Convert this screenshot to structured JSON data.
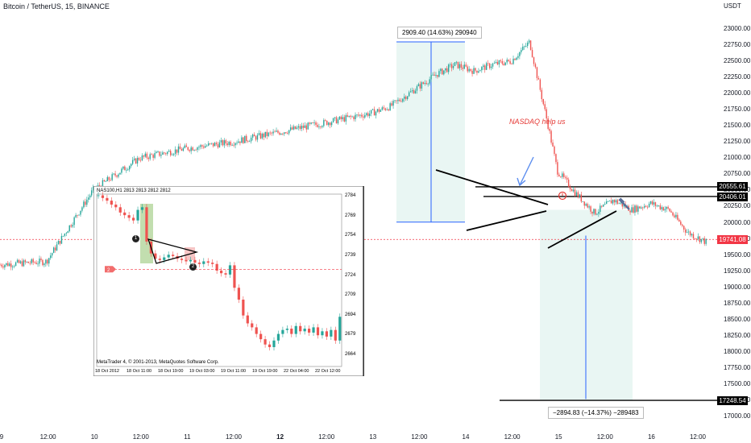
{
  "header": {
    "title": "Bitcoin / TetherUS, 15, BINANCE",
    "currency": "USDT"
  },
  "chart_data": {
    "type": "line",
    "title": "Bitcoin / TetherUS, 15, BINANCE",
    "ylabel": "USDT",
    "ylim": [
      16800,
      23350
    ],
    "y_ticks": [
      "23000.00",
      "22750.00",
      "22500.00",
      "22250.00",
      "22000.00",
      "21750.00",
      "21500.00",
      "21250.00",
      "21000.00",
      "20750.00",
      "20500.00",
      "20250.00",
      "20000.00",
      "19750.00",
      "19500.00",
      "19250.00",
      "19000.00",
      "18750.00",
      "18500.00",
      "18250.00",
      "18000.00",
      "17750.00",
      "17500.00",
      "17250.00",
      "17000.00"
    ],
    "x_ticks": [
      "9",
      "12:00",
      "10",
      "12:00",
      "11",
      "12:00",
      "12",
      "12:00",
      "13",
      "12:00",
      "14",
      "12:00",
      "15",
      "12:00",
      "16",
      "12:00"
    ],
    "x_tick_bold": [
      false,
      false,
      false,
      false,
      false,
      false,
      true,
      false,
      false,
      false,
      false,
      false,
      false,
      false,
      false,
      false
    ],
    "series": [
      {
        "x": [
          0,
          0.5,
          1.0,
          1.5,
          2.0,
          2.5,
          3.0,
          3.5,
          4.0,
          4.2,
          4.5,
          4.7,
          4.9,
          5.1,
          5.3,
          5.5,
          5.7,
          5.9,
          6.0,
          6.2,
          6.4,
          6.6,
          6.8,
          7.0,
          7.2,
          7.4,
          7.6
        ],
        "values": [
          19350,
          19400,
          20500,
          21000,
          21150,
          21250,
          21400,
          21550,
          21700,
          21800,
          22100,
          22300,
          22450,
          22350,
          22450,
          22500,
          22800,
          21500,
          20800,
          20450,
          20150,
          20350,
          20200,
          20300,
          20200,
          19850,
          19700
        ]
      }
    ],
    "price_tags": [
      "20555.61",
      "20406.01",
      "19741.08",
      "17248.54"
    ],
    "measure_up": "2909.40 (14.63%) 290940",
    "measure_down": "−2894.83 (−14.37%) −289483",
    "annotation": "NASDAQ help us"
  },
  "inset": {
    "title": "NAS100,H1  2813 2813 2812 2812",
    "footer": "MetaTrader 4, © 2001-2013, MetaQuotes Software Corp.",
    "y_ticks": [
      "2784",
      "2769",
      "2754",
      "2739",
      "2724",
      "2709",
      "2694",
      "2679",
      "2664"
    ],
    "x_ticks": [
      "18 Oct 2012",
      "18 Oct 11:00",
      "18 Oct 19:00",
      "19 Oct 03:00",
      "19 Oct 11:00",
      "19 Oct 19:00",
      "22 Oct 04:00",
      "22 Oct 12:00"
    ],
    "ylim": [
      2659,
      2789
    ],
    "badges": [
      "1",
      "2"
    ],
    "price_tag": "2",
    "closes": [
      2785,
      2783,
      2781,
      2778,
      2776,
      2772,
      2770,
      2768,
      2766,
      2774,
      2776,
      2750,
      2741,
      2737,
      2736,
      2738,
      2740,
      2739,
      2737,
      2736,
      2735,
      2736,
      2734,
      2733,
      2735,
      2734,
      2733,
      2728,
      2726,
      2725,
      2732,
      2715,
      2706,
      2694,
      2688,
      2685,
      2680,
      2676,
      2672,
      2670,
      2675,
      2680,
      2683,
      2684,
      2680,
      2686,
      2682,
      2684,
      2681,
      2685,
      2679,
      2682,
      2678,
      2683,
      2675,
      2693
    ]
  },
  "colors": {
    "up": "#26a69a",
    "down": "#ef5350",
    "range_fill": "#e9f6f3",
    "range_line": "#2962ff",
    "dashed": "#f23645"
  }
}
